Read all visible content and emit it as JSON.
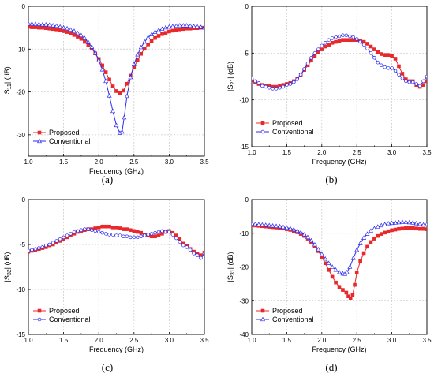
{
  "figure": {
    "colors": {
      "proposed": "#e8282b",
      "conventional": "#2d2df0",
      "grid": "#c8c8c8",
      "axis": "#000000"
    }
  },
  "chart_data": [
    {
      "id": "a",
      "type": "line",
      "panel_label": "(a)",
      "xlabel": "Frequency (GHz)",
      "ylabel": "|S11| (dB)",
      "ylabel_base": "|S",
      "ylabel_sub": "11",
      "ylabel_tail": "| (dB)",
      "xlim": [
        1.0,
        3.5
      ],
      "ylim": [
        -35,
        0
      ],
      "xticks": [
        "1.0",
        "1.5",
        "2.0",
        "2.5",
        "3.0",
        "3.5"
      ],
      "yticks": [
        "0",
        "-10",
        "-20",
        "-30"
      ],
      "ytick_values": [
        0,
        -10,
        -20,
        -30
      ],
      "grid": true,
      "legend_position": "bottom-left",
      "series": [
        {
          "name": "Proposed",
          "color_key": "proposed",
          "marker": "square",
          "x": [
            1.0,
            1.05,
            1.1,
            1.15,
            1.2,
            1.25,
            1.3,
            1.35,
            1.4,
            1.45,
            1.5,
            1.55,
            1.6,
            1.65,
            1.7,
            1.75,
            1.8,
            1.85,
            1.9,
            1.95,
            2.0,
            2.05,
            2.1,
            2.15,
            2.2,
            2.25,
            2.3,
            2.35,
            2.4,
            2.45,
            2.5,
            2.55,
            2.6,
            2.65,
            2.7,
            2.75,
            2.8,
            2.85,
            2.9,
            2.95,
            3.0,
            3.05,
            3.1,
            3.15,
            3.2,
            3.25,
            3.3,
            3.35,
            3.4,
            3.45,
            3.5
          ],
          "y": [
            -4.8,
            -4.9,
            -4.9,
            -5.0,
            -5.0,
            -5.1,
            -5.2,
            -5.3,
            -5.4,
            -5.6,
            -5.8,
            -6.0,
            -6.3,
            -6.7,
            -7.1,
            -7.6,
            -8.3,
            -9.0,
            -9.9,
            -11.0,
            -12.3,
            -13.8,
            -15.4,
            -17.1,
            -18.7,
            -19.8,
            -20.3,
            -19.7,
            -18.1,
            -16.2,
            -14.3,
            -12.6,
            -11.1,
            -9.9,
            -8.9,
            -8.1,
            -7.4,
            -6.9,
            -6.5,
            -6.2,
            -5.9,
            -5.7,
            -5.6,
            -5.4,
            -5.3,
            -5.2,
            -5.2,
            -5.1,
            -5.1,
            -5.0,
            -5.0
          ]
        },
        {
          "name": "Conventional",
          "color_key": "conventional",
          "marker": "triangle",
          "x": [
            1.0,
            1.05,
            1.1,
            1.15,
            1.2,
            1.25,
            1.3,
            1.35,
            1.4,
            1.45,
            1.5,
            1.55,
            1.6,
            1.65,
            1.7,
            1.75,
            1.8,
            1.85,
            1.9,
            1.95,
            2.0,
            2.05,
            2.1,
            2.15,
            2.2,
            2.25,
            2.3,
            2.33,
            2.36,
            2.4,
            2.45,
            2.5,
            2.55,
            2.6,
            2.65,
            2.7,
            2.75,
            2.8,
            2.85,
            2.9,
            2.95,
            3.0,
            3.05,
            3.1,
            3.15,
            3.2,
            3.25,
            3.3,
            3.35,
            3.4,
            3.45,
            3.5
          ],
          "y": [
            -4.1,
            -4.1,
            -4.2,
            -4.2,
            -4.3,
            -4.3,
            -4.4,
            -4.5,
            -4.6,
            -4.8,
            -5.0,
            -5.2,
            -5.5,
            -5.8,
            -6.3,
            -6.8,
            -7.5,
            -8.4,
            -9.5,
            -10.9,
            -12.6,
            -14.8,
            -17.5,
            -20.9,
            -24.5,
            -27.8,
            -29.6,
            -29.3,
            -26.0,
            -21.0,
            -16.6,
            -13.6,
            -11.3,
            -9.6,
            -8.3,
            -7.3,
            -6.6,
            -6.0,
            -5.6,
            -5.3,
            -5.0,
            -4.8,
            -4.7,
            -4.6,
            -4.5,
            -4.5,
            -4.5,
            -4.6,
            -4.7,
            -4.8,
            -4.9,
            -5.0
          ]
        }
      ]
    },
    {
      "id": "b",
      "type": "line",
      "panel_label": "(b)",
      "xlabel": "Frequency (GHz)",
      "ylabel": "|S21| (dB)",
      "ylabel_base": "|S",
      "ylabel_sub": "21",
      "ylabel_tail": "| (dB)",
      "xlim": [
        1.0,
        3.5
      ],
      "ylim": [
        -15,
        0
      ],
      "xticks": [
        "1.0",
        "1.5",
        "2.0",
        "2.5",
        "3.0",
        "3.5"
      ],
      "yticks": [
        "0",
        "-5",
        "-10",
        "-15"
      ],
      "ytick_values": [
        0,
        -5,
        -10,
        -15
      ],
      "grid": true,
      "legend_position": "bottom-left",
      "series": [
        {
          "name": "Proposed",
          "color_key": "proposed",
          "marker": "square",
          "x": [
            1.0,
            1.05,
            1.1,
            1.15,
            1.2,
            1.25,
            1.3,
            1.35,
            1.4,
            1.45,
            1.5,
            1.55,
            1.6,
            1.65,
            1.7,
            1.75,
            1.8,
            1.85,
            1.9,
            1.95,
            2.0,
            2.05,
            2.1,
            2.15,
            2.2,
            2.25,
            2.3,
            2.35,
            2.4,
            2.45,
            2.5,
            2.55,
            2.6,
            2.65,
            2.7,
            2.75,
            2.8,
            2.85,
            2.9,
            2.95,
            3.0,
            3.05,
            3.1,
            3.15,
            3.2,
            3.25,
            3.3,
            3.35,
            3.4,
            3.45,
            3.5
          ],
          "y": [
            -7.9,
            -8.1,
            -8.3,
            -8.4,
            -8.5,
            -8.5,
            -8.6,
            -8.6,
            -8.5,
            -8.4,
            -8.3,
            -8.2,
            -8.0,
            -7.7,
            -7.3,
            -6.8,
            -6.3,
            -5.8,
            -5.3,
            -4.9,
            -4.6,
            -4.3,
            -4.1,
            -3.9,
            -3.8,
            -3.7,
            -3.6,
            -3.6,
            -3.6,
            -3.6,
            -3.6,
            -3.7,
            -3.8,
            -4.0,
            -4.3,
            -4.6,
            -4.9,
            -5.1,
            -5.2,
            -5.2,
            -5.3,
            -5.6,
            -6.4,
            -7.2,
            -7.8,
            -8.0,
            -8.0,
            -8.4,
            -8.6,
            -8.4,
            -8.0
          ]
        },
        {
          "name": "Conventional",
          "color_key": "conventional",
          "marker": "circle",
          "x": [
            1.0,
            1.05,
            1.1,
            1.15,
            1.2,
            1.25,
            1.3,
            1.35,
            1.4,
            1.45,
            1.5,
            1.55,
            1.6,
            1.65,
            1.7,
            1.75,
            1.8,
            1.85,
            1.9,
            1.95,
            2.0,
            2.05,
            2.1,
            2.15,
            2.2,
            2.25,
            2.3,
            2.35,
            2.4,
            2.45,
            2.5,
            2.55,
            2.6,
            2.65,
            2.7,
            2.75,
            2.8,
            2.85,
            2.9,
            2.95,
            3.0,
            3.05,
            3.1,
            3.15,
            3.2,
            3.25,
            3.3,
            3.35,
            3.4,
            3.45,
            3.5
          ],
          "y": [
            -7.7,
            -8.0,
            -8.2,
            -8.5,
            -8.6,
            -8.7,
            -8.8,
            -8.8,
            -8.7,
            -8.6,
            -8.4,
            -8.3,
            -8.1,
            -7.8,
            -7.3,
            -6.7,
            -6.1,
            -5.5,
            -5.0,
            -4.6,
            -4.2,
            -3.9,
            -3.6,
            -3.4,
            -3.3,
            -3.2,
            -3.1,
            -3.1,
            -3.2,
            -3.3,
            -3.5,
            -3.8,
            -4.1,
            -4.5,
            -5.0,
            -5.5,
            -6.0,
            -6.3,
            -6.5,
            -6.6,
            -6.6,
            -6.9,
            -7.3,
            -7.7,
            -8.0,
            -8.1,
            -8.1,
            -8.3,
            -8.5,
            -8.0,
            -7.5
          ]
        }
      ]
    },
    {
      "id": "c",
      "type": "line",
      "panel_label": "(c)",
      "xlabel": "Frequency (GHz)",
      "ylabel": "|S32| (dB)",
      "ylabel_base": "|S",
      "ylabel_sub": "32",
      "ylabel_tail": "| (dB)",
      "xlim": [
        1.0,
        3.5
      ],
      "ylim": [
        -15,
        0
      ],
      "xticks": [
        "1.0",
        "1.5",
        "2.0",
        "2.5",
        "3.0",
        "3.5"
      ],
      "yticks": [
        "0",
        "-5",
        "-10",
        "-15"
      ],
      "ytick_values": [
        0,
        -5,
        -10,
        -15
      ],
      "grid": true,
      "legend_position": "bottom-left",
      "series": [
        {
          "name": "Proposed",
          "color_key": "proposed",
          "marker": "square",
          "x": [
            1.0,
            1.05,
            1.1,
            1.15,
            1.2,
            1.25,
            1.3,
            1.35,
            1.4,
            1.45,
            1.5,
            1.55,
            1.6,
            1.65,
            1.7,
            1.75,
            1.8,
            1.85,
            1.9,
            1.95,
            2.0,
            2.05,
            2.1,
            2.15,
            2.2,
            2.25,
            2.3,
            2.35,
            2.4,
            2.45,
            2.5,
            2.55,
            2.6,
            2.65,
            2.7,
            2.75,
            2.8,
            2.85,
            2.9,
            2.95,
            3.0,
            3.05,
            3.1,
            3.15,
            3.2,
            3.25,
            3.3,
            3.35,
            3.4,
            3.45,
            3.5
          ],
          "y": [
            -5.8,
            -5.7,
            -5.6,
            -5.5,
            -5.4,
            -5.3,
            -5.1,
            -5.0,
            -4.8,
            -4.6,
            -4.4,
            -4.2,
            -4.0,
            -3.8,
            -3.6,
            -3.5,
            -3.4,
            -3.3,
            -3.3,
            -3.2,
            -3.1,
            -3.0,
            -3.0,
            -3.0,
            -3.1,
            -3.1,
            -3.2,
            -3.3,
            -3.3,
            -3.4,
            -3.5,
            -3.6,
            -3.7,
            -3.9,
            -4.0,
            -4.1,
            -4.1,
            -4.0,
            -3.8,
            -3.6,
            -3.5,
            -3.7,
            -4.0,
            -4.4,
            -4.9,
            -5.2,
            -5.5,
            -5.8,
            -6.0,
            -6.2,
            -5.9
          ]
        },
        {
          "name": "Conventional",
          "color_key": "conventional",
          "marker": "circle",
          "x": [
            1.0,
            1.05,
            1.1,
            1.15,
            1.2,
            1.25,
            1.3,
            1.35,
            1.4,
            1.45,
            1.5,
            1.55,
            1.6,
            1.65,
            1.7,
            1.75,
            1.8,
            1.85,
            1.9,
            1.95,
            2.0,
            2.05,
            2.1,
            2.15,
            2.2,
            2.25,
            2.3,
            2.35,
            2.4,
            2.45,
            2.5,
            2.55,
            2.6,
            2.65,
            2.7,
            2.75,
            2.8,
            2.85,
            2.9,
            2.95,
            3.0,
            3.05,
            3.1,
            3.15,
            3.2,
            3.25,
            3.3,
            3.35,
            3.4,
            3.45,
            3.5
          ],
          "y": [
            -5.7,
            -5.6,
            -5.5,
            -5.4,
            -5.3,
            -5.1,
            -5.0,
            -4.8,
            -4.6,
            -4.4,
            -4.2,
            -4.0,
            -3.8,
            -3.6,
            -3.5,
            -3.4,
            -3.3,
            -3.3,
            -3.4,
            -3.5,
            -3.6,
            -3.7,
            -3.8,
            -3.9,
            -3.9,
            -4.0,
            -4.0,
            -4.1,
            -4.1,
            -4.2,
            -4.2,
            -4.2,
            -4.1,
            -4.0,
            -3.9,
            -3.8,
            -3.7,
            -3.6,
            -3.5,
            -3.6,
            -3.6,
            -3.9,
            -4.3,
            -4.7,
            -5.1,
            -5.3,
            -5.6,
            -6.0,
            -6.2,
            -6.5,
            -6.0
          ]
        }
      ]
    },
    {
      "id": "d",
      "type": "line",
      "panel_label": "(d)",
      "xlabel": "Frequency (GHz)",
      "ylabel": "|S31| (dB)",
      "ylabel_base": "|S",
      "ylabel_sub": "31",
      "ylabel_tail": "| (dB)",
      "xlim": [
        1.0,
        3.5
      ],
      "ylim": [
        -40,
        0
      ],
      "xticks": [
        "1.0",
        "1.5",
        "2.0",
        "2.5",
        "3.0",
        "3.5"
      ],
      "yticks": [
        "0",
        "-10",
        "-20",
        "-30",
        "-40"
      ],
      "ytick_values": [
        0,
        -10,
        -20,
        -30,
        -40
      ],
      "grid": true,
      "legend_position": "bottom-left",
      "series": [
        {
          "name": "Proposed",
          "color_key": "proposed",
          "marker": "square",
          "x": [
            1.0,
            1.05,
            1.1,
            1.15,
            1.2,
            1.25,
            1.3,
            1.35,
            1.4,
            1.45,
            1.5,
            1.55,
            1.6,
            1.65,
            1.7,
            1.75,
            1.8,
            1.85,
            1.9,
            1.95,
            2.0,
            2.05,
            2.1,
            2.15,
            2.2,
            2.25,
            2.3,
            2.35,
            2.38,
            2.41,
            2.44,
            2.47,
            2.5,
            2.55,
            2.6,
            2.65,
            2.7,
            2.75,
            2.8,
            2.85,
            2.9,
            2.95,
            3.0,
            3.05,
            3.1,
            3.15,
            3.2,
            3.25,
            3.3,
            3.35,
            3.4,
            3.45,
            3.5
          ],
          "y": [
            -7.6,
            -7.7,
            -7.8,
            -7.9,
            -8.0,
            -8.1,
            -8.2,
            -8.3,
            -8.4,
            -8.6,
            -8.8,
            -9.0,
            -9.3,
            -9.7,
            -10.2,
            -10.8,
            -11.6,
            -12.6,
            -13.8,
            -15.3,
            -17.0,
            -18.9,
            -20.9,
            -22.9,
            -24.6,
            -25.9,
            -26.8,
            -27.6,
            -28.7,
            -29.4,
            -28.3,
            -25.3,
            -21.7,
            -18.3,
            -15.9,
            -14.0,
            -12.6,
            -11.6,
            -10.8,
            -10.2,
            -9.8,
            -9.4,
            -9.1,
            -8.9,
            -8.7,
            -8.6,
            -8.5,
            -8.5,
            -8.5,
            -8.6,
            -8.7,
            -8.7,
            -8.8
          ]
        },
        {
          "name": "Conventional",
          "color_key": "conventional",
          "marker": "triangle",
          "x": [
            1.0,
            1.05,
            1.1,
            1.15,
            1.2,
            1.25,
            1.3,
            1.35,
            1.4,
            1.45,
            1.5,
            1.55,
            1.6,
            1.65,
            1.7,
            1.75,
            1.8,
            1.85,
            1.9,
            1.95,
            2.0,
            2.05,
            2.1,
            2.15,
            2.2,
            2.25,
            2.3,
            2.33,
            2.36,
            2.4,
            2.45,
            2.5,
            2.55,
            2.6,
            2.65,
            2.7,
            2.75,
            2.8,
            2.85,
            2.9,
            2.95,
            3.0,
            3.05,
            3.1,
            3.15,
            3.2,
            3.25,
            3.3,
            3.35,
            3.4,
            3.45,
            3.5
          ],
          "y": [
            -7.2,
            -7.3,
            -7.4,
            -7.5,
            -7.6,
            -7.7,
            -7.8,
            -7.9,
            -8.0,
            -8.2,
            -8.4,
            -8.6,
            -8.9,
            -9.3,
            -9.8,
            -10.4,
            -11.2,
            -12.2,
            -13.4,
            -14.8,
            -16.2,
            -17.6,
            -18.9,
            -20.0,
            -20.9,
            -21.6,
            -22.0,
            -22.1,
            -21.6,
            -20.0,
            -17.4,
            -15.0,
            -13.0,
            -11.4,
            -10.2,
            -9.3,
            -8.6,
            -8.1,
            -7.7,
            -7.4,
            -7.1,
            -7.0,
            -6.9,
            -6.8,
            -6.7,
            -6.7,
            -6.8,
            -6.9,
            -7.1,
            -7.3,
            -7.5,
            -7.3
          ]
        }
      ]
    }
  ]
}
